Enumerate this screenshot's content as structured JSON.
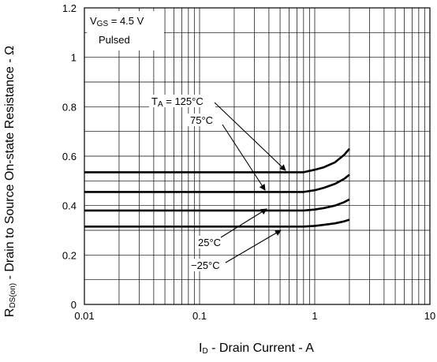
{
  "chart_data": {
    "type": "line",
    "x_scale": "log",
    "xlim": [
      0.01,
      10
    ],
    "ylim": [
      0,
      1.2
    ],
    "grid": true,
    "xlabel": {
      "main": "I",
      "sub": "D",
      "rest": " - Drain Current - A"
    },
    "ylabel": {
      "main": "R",
      "sub": "DS(on)",
      "rest": " - Drain to Source On-state Resistance - Ω"
    },
    "x_ticks": [
      {
        "value": 0.01,
        "label": "0.01"
      },
      {
        "value": 0.1,
        "label": "0.1"
      },
      {
        "value": 1,
        "label": "1"
      },
      {
        "value": 10,
        "label": "10"
      }
    ],
    "y_ticks": [
      {
        "value": 0,
        "label": "0"
      },
      {
        "value": 0.2,
        "label": "0.2"
      },
      {
        "value": 0.4,
        "label": "0.4"
      },
      {
        "value": 0.6,
        "label": "0.6"
      },
      {
        "value": 0.8,
        "label": "0.8"
      },
      {
        "value": 1.0,
        "label": "1"
      },
      {
        "value": 1.2,
        "label": "1.2"
      }
    ],
    "conditions": {
      "vgs_main": "V",
      "vgs_sub": "GS",
      "vgs_rest": " = 4.5 V",
      "pulsed": "Pulsed"
    },
    "series": [
      {
        "name": "125°C",
        "x": [
          0.01,
          0.5,
          0.8,
          1.0,
          1.2,
          1.5,
          1.8,
          2.0
        ],
        "values": [
          0.535,
          0.535,
          0.535,
          0.545,
          0.555,
          0.575,
          0.605,
          0.63
        ]
      },
      {
        "name": "75°C",
        "x": [
          0.01,
          0.5,
          0.8,
          1.0,
          1.2,
          1.5,
          1.8,
          2.0
        ],
        "values": [
          0.455,
          0.455,
          0.455,
          0.462,
          0.472,
          0.488,
          0.508,
          0.525
        ]
      },
      {
        "name": "25°C",
        "x": [
          0.01,
          0.5,
          0.8,
          1.0,
          1.2,
          1.5,
          1.8,
          2.0
        ],
        "values": [
          0.38,
          0.38,
          0.38,
          0.384,
          0.39,
          0.4,
          0.414,
          0.425
        ]
      },
      {
        "name": "−25°C",
        "x": [
          0.01,
          0.5,
          0.8,
          1.0,
          1.2,
          1.5,
          1.8,
          2.0
        ],
        "values": [
          0.315,
          0.315,
          0.315,
          0.318,
          0.322,
          0.328,
          0.336,
          0.343
        ]
      }
    ],
    "annotations": {
      "ta_main": "T",
      "ta_sub": "A",
      "ta_rest": " = 125°C",
      "t75": "75°C",
      "t25": "25°C",
      "tm25": "−25°C"
    }
  }
}
